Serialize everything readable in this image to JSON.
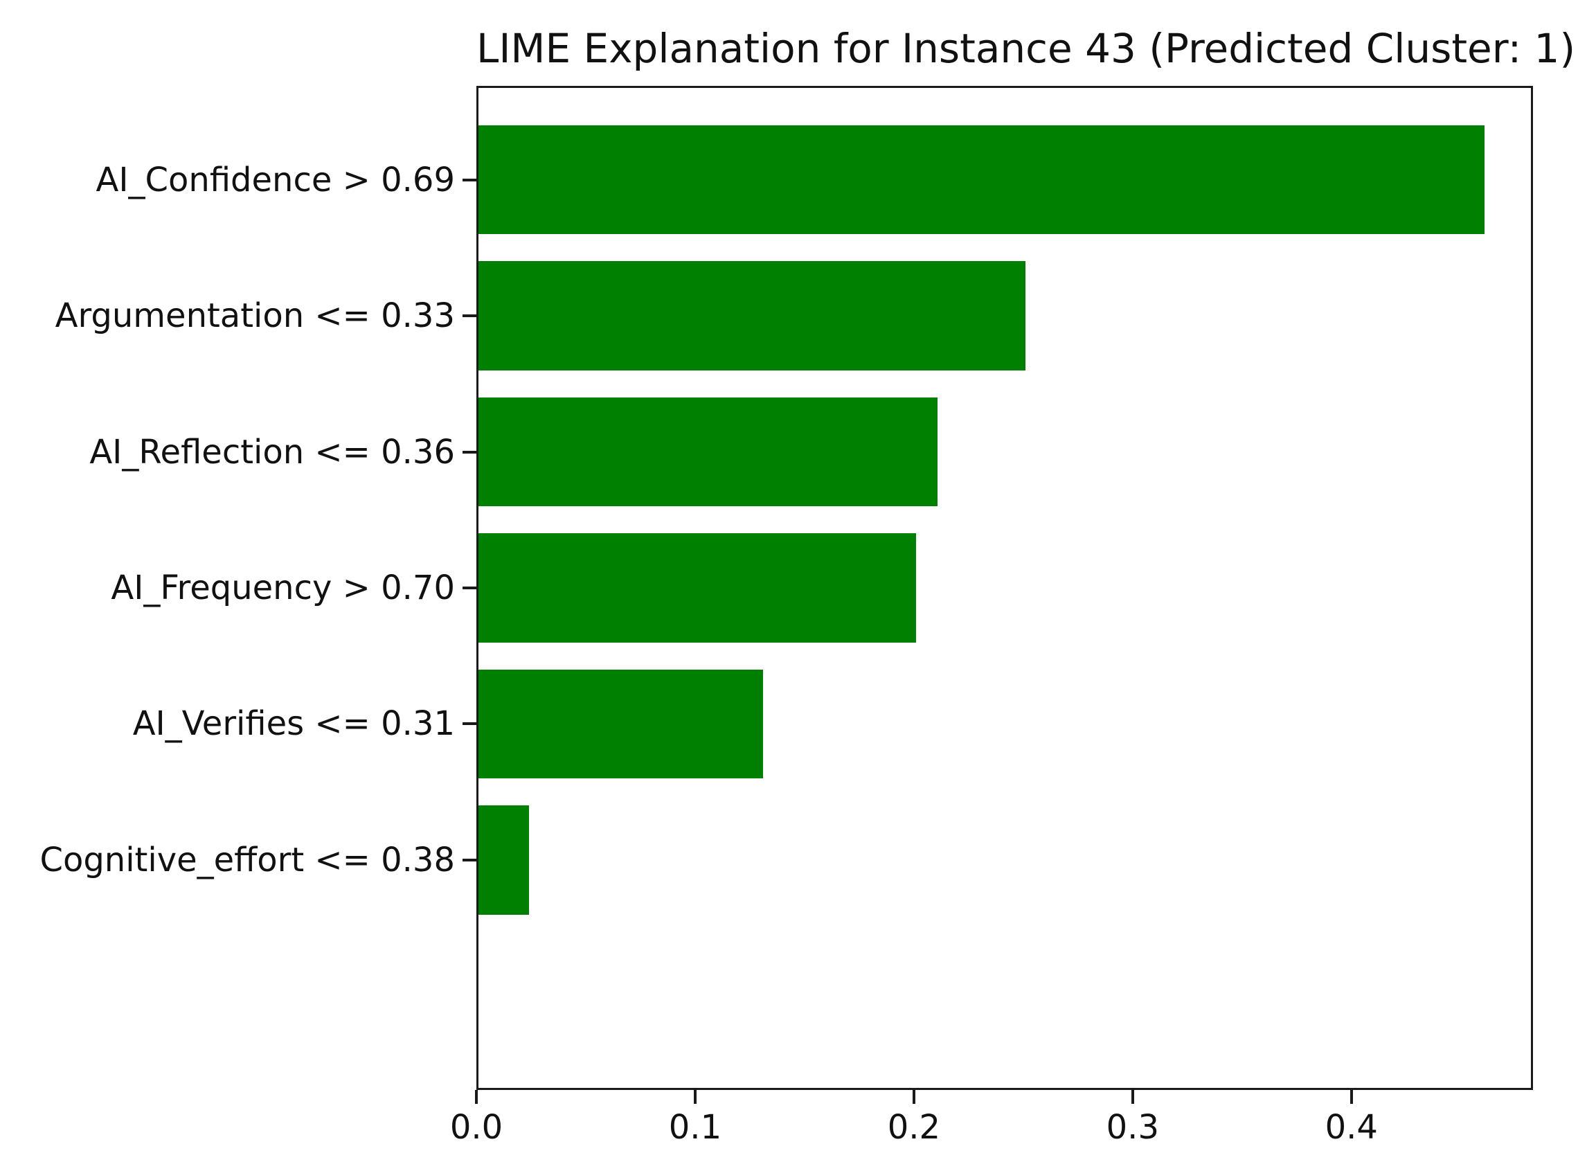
{
  "chart_data": {
    "type": "bar",
    "orientation": "horizontal",
    "title": "LIME Explanation for Instance 43 (Predicted Cluster: 1)",
    "categories": [
      "AI_Confidence > 0.69",
      "Argumentation <= 0.33",
      "AI_Reflection <= 0.36",
      "AI_Frequency > 0.70",
      "AI_Verifies <= 0.31",
      "Cognitive_effort <= 0.38"
    ],
    "values": [
      0.46,
      0.25,
      0.21,
      0.2,
      0.13,
      0.023
    ],
    "bar_color": "#008000",
    "axis_color": "#1a1a1a",
    "xlabel": "",
    "ylabel": "",
    "xticks": [
      "0.0",
      "0.1",
      "0.2",
      "0.3",
      "0.4"
    ],
    "xtick_values": [
      0.0,
      0.1,
      0.2,
      0.3,
      0.4
    ],
    "xlim": [
      0,
      0.483
    ],
    "grid": false,
    "legend": null
  }
}
